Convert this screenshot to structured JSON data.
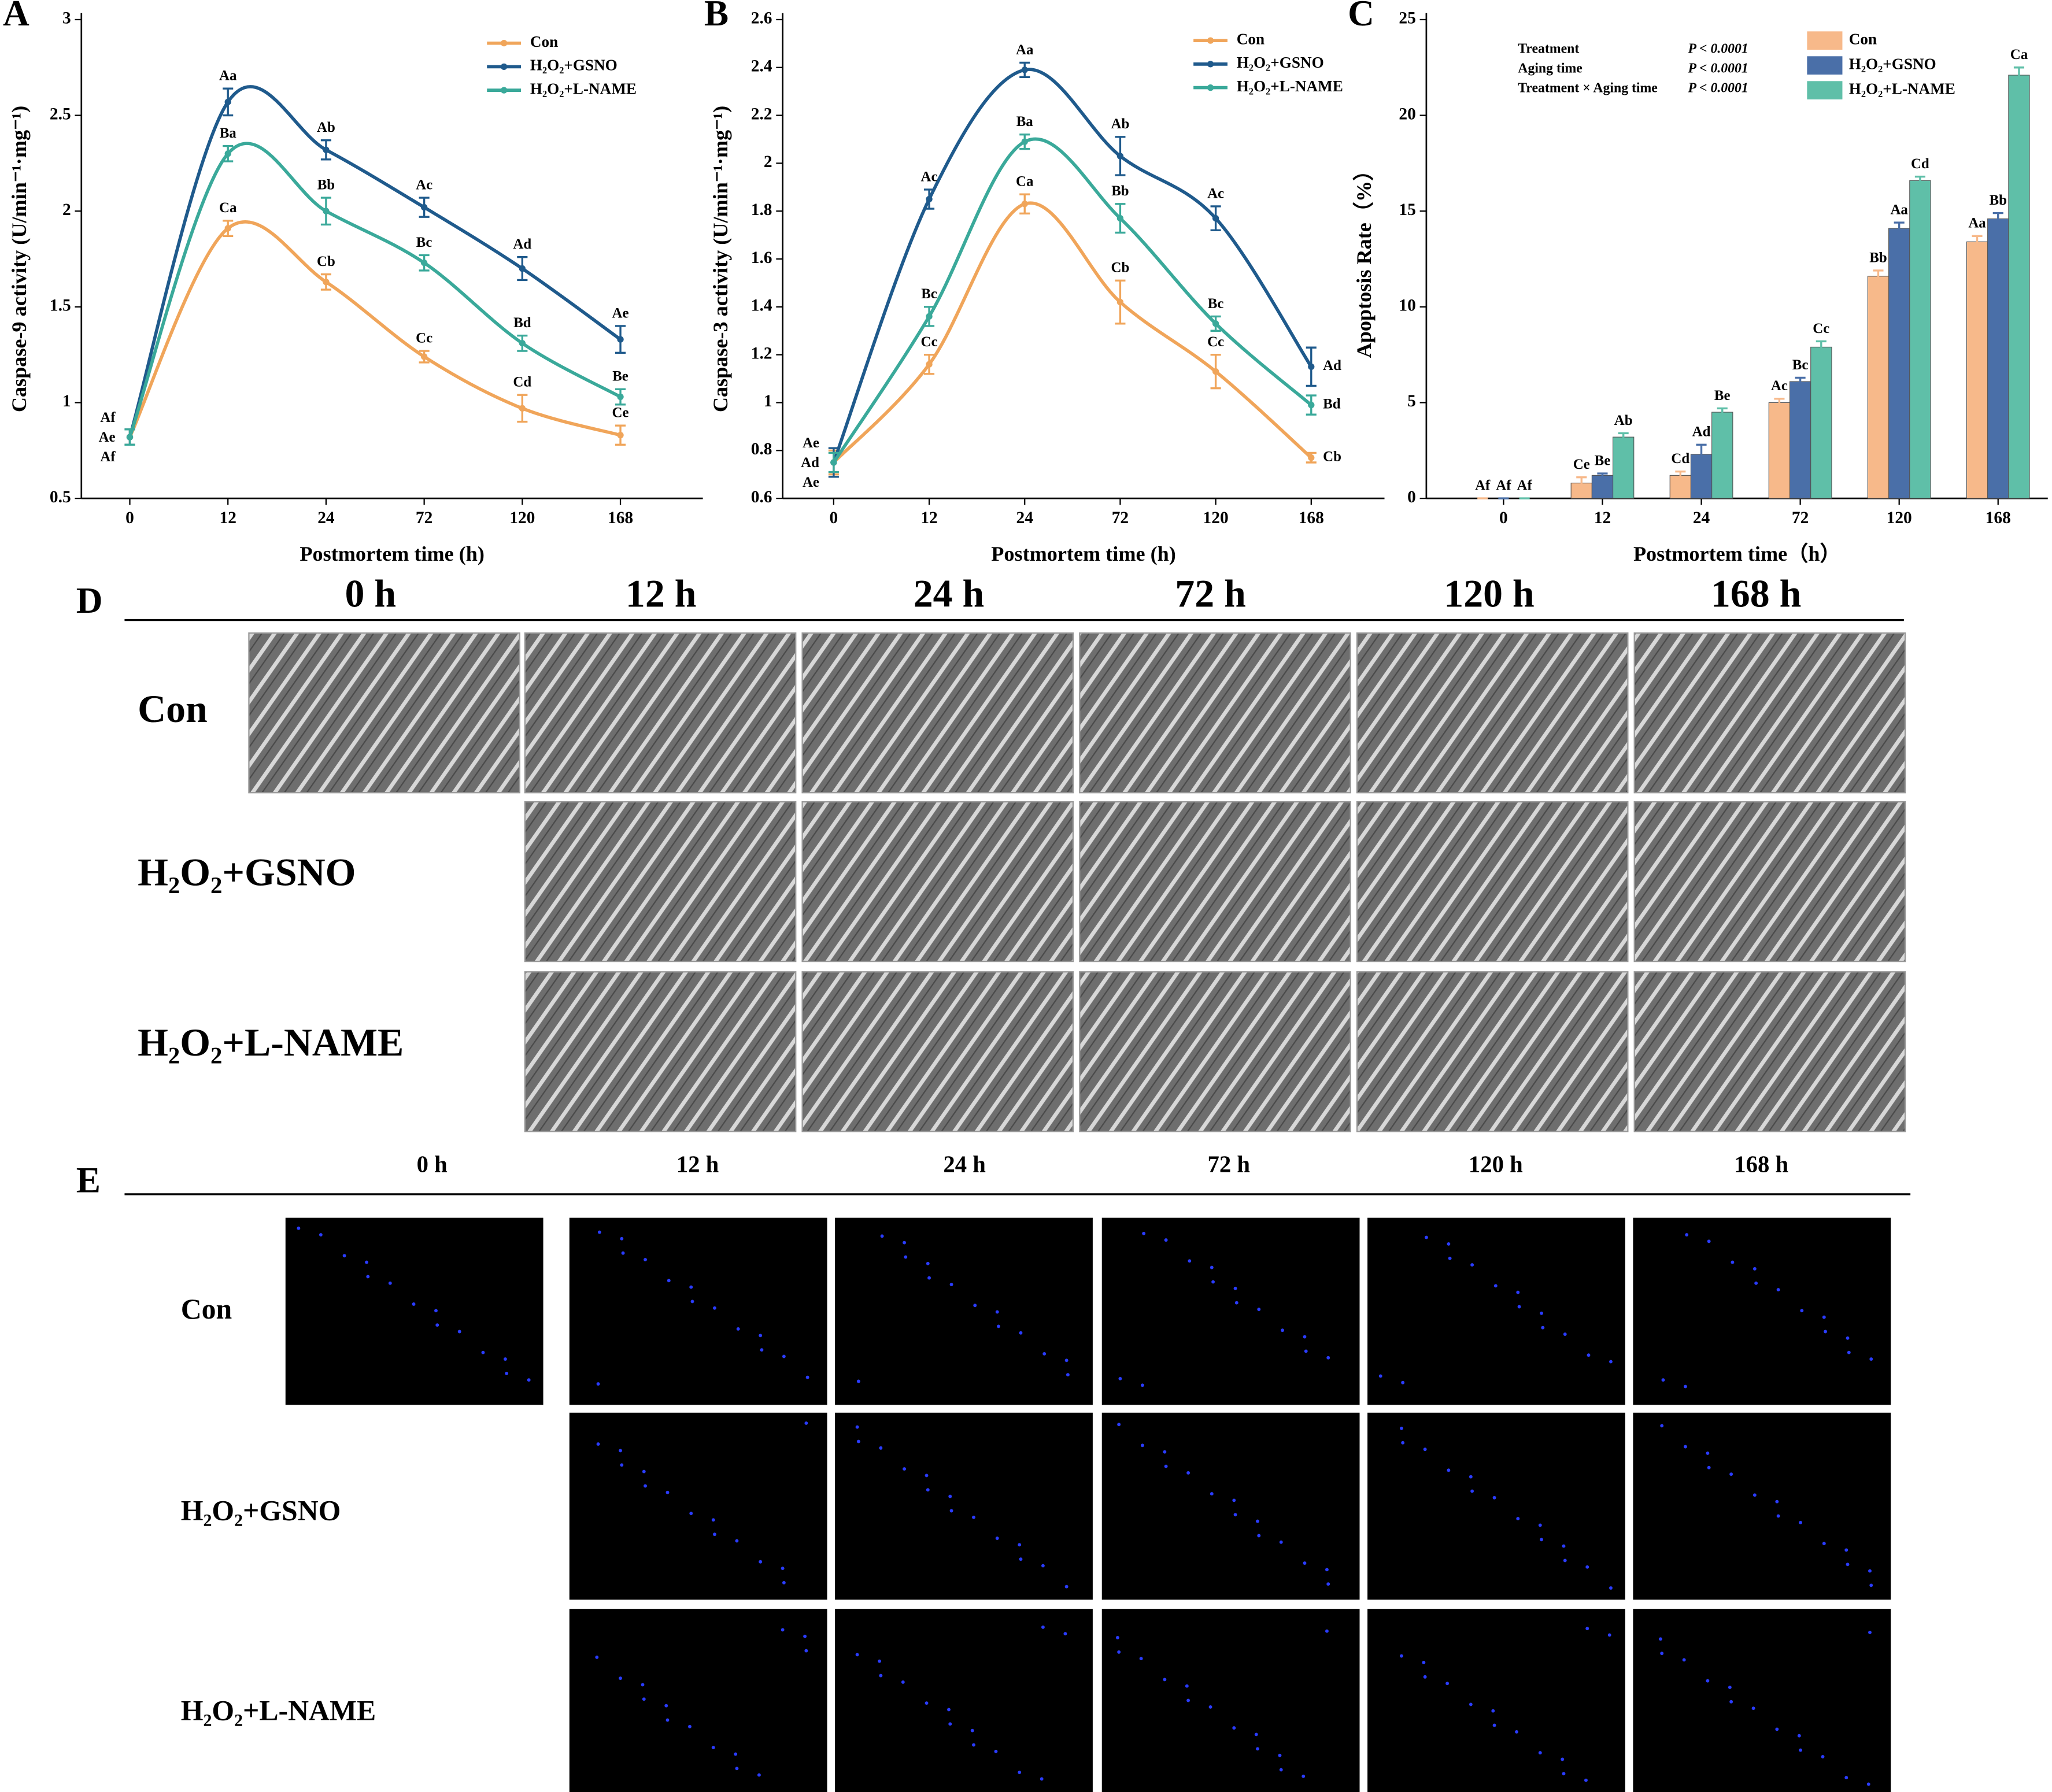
{
  "chart_data": [
    {
      "type": "line",
      "panel": "A",
      "xlabel": "Postmortem time (h)",
      "ylabel": "Caspase-9 activity (U/min⁻¹·mg⁻¹)",
      "categories": [
        "0",
        "12",
        "24",
        "72",
        "120",
        "168"
      ],
      "ylim": [
        0.5,
        3.0
      ],
      "yticks": [
        0.5,
        1.0,
        1.5,
        2.0,
        2.5,
        3.0
      ],
      "series": [
        {
          "name": "Con",
          "color": "#f0a55a",
          "values": [
            0.82,
            1.91,
            1.63,
            1.24,
            0.97,
            0.83
          ],
          "errors": [
            0.04,
            0.04,
            0.04,
            0.03,
            0.07,
            0.05
          ],
          "labels": [
            "Af",
            "Ca",
            "Cb",
            "Cc",
            "Cd",
            "Ce"
          ]
        },
        {
          "name": "H₂O₂+GSNO",
          "color": "#1f5a8c",
          "values": [
            0.82,
            2.57,
            2.32,
            2.02,
            1.7,
            1.33
          ],
          "errors": [
            0.04,
            0.07,
            0.05,
            0.05,
            0.06,
            0.07
          ],
          "labels": [
            "Ae",
            "Aa",
            "Ab",
            "Ac",
            "Ad",
            "Ae"
          ]
        },
        {
          "name": "H₂O₂+L-NAME",
          "color": "#3aa99a",
          "values": [
            0.82,
            2.3,
            2.0,
            1.73,
            1.31,
            1.03
          ],
          "errors": [
            0.04,
            0.04,
            0.07,
            0.04,
            0.04,
            0.04
          ],
          "labels": [
            "Af",
            "Ba",
            "Bb",
            "Bc",
            "Bd",
            "Be"
          ]
        }
      ]
    },
    {
      "type": "line",
      "panel": "B",
      "xlabel": "Postmortem time (h)",
      "ylabel": "Caspase-3 activity (U/min⁻¹·mg⁻¹)",
      "categories": [
        "0",
        "12",
        "24",
        "72",
        "120",
        "168"
      ],
      "ylim": [
        0.6,
        2.6
      ],
      "yticks": [
        0.6,
        0.8,
        1.0,
        1.2,
        1.4,
        1.6,
        1.8,
        2.0,
        2.2,
        2.4,
        2.6
      ],
      "series": [
        {
          "name": "Con",
          "color": "#f0a55a",
          "values": [
            0.75,
            1.16,
            1.83,
            1.42,
            1.13,
            0.77
          ],
          "errors": [
            0.05,
            0.04,
            0.04,
            0.09,
            0.07,
            0.02
          ],
          "labels": [
            "Ae",
            "Cc",
            "Ca",
            "Cb",
            "Cc",
            "Cb"
          ]
        },
        {
          "name": "H₂O₂+GSNO",
          "color": "#1f5a8c",
          "values": [
            0.75,
            1.85,
            2.39,
            2.03,
            1.77,
            1.15
          ],
          "errors": [
            0.06,
            0.04,
            0.03,
            0.08,
            0.05,
            0.08
          ],
          "labels": [
            "Ad",
            "Ac",
            "Aa",
            "Ab",
            "Ac",
            "Ad"
          ]
        },
        {
          "name": "H₂O₂+L-NAME",
          "color": "#3aa99a",
          "values": [
            0.75,
            1.36,
            2.09,
            1.77,
            1.33,
            0.99
          ],
          "errors": [
            0.04,
            0.04,
            0.03,
            0.06,
            0.03,
            0.04
          ],
          "labels": [
            "Ae",
            "Bc",
            "Ba",
            "Bb",
            "Bc",
            "Bd"
          ]
        }
      ]
    },
    {
      "type": "bar",
      "panel": "C",
      "xlabel": "Postmortem time（h）",
      "ylabel": "Apoptosis Rate（%）",
      "categories": [
        "0",
        "12",
        "24",
        "72",
        "120",
        "168"
      ],
      "ylim": [
        0,
        25
      ],
      "yticks": [
        0,
        5,
        10,
        15,
        20,
        25
      ],
      "stats": [
        {
          "label": "Treatment",
          "p": "P < 0.0001"
        },
        {
          "label": "Aging time",
          "p": "P < 0.0001"
        },
        {
          "label": "Treatment × Aging time",
          "p": "P < 0.0001"
        }
      ],
      "series": [
        {
          "name": "Con",
          "color": "#f7b98a",
          "values": [
            0,
            0.8,
            1.2,
            5.0,
            11.6,
            13.4
          ],
          "errors": [
            0,
            0.3,
            0.2,
            0.2,
            0.3,
            0.3
          ],
          "labels": [
            "Af",
            "Ce",
            "Cd",
            "Ac",
            "Bb",
            "Aa"
          ]
        },
        {
          "name": "H₂O₂+GSNO",
          "color": "#4a6fa8",
          "values": [
            0,
            1.2,
            2.3,
            6.1,
            14.1,
            14.6
          ],
          "errors": [
            0,
            0.1,
            0.5,
            0.2,
            0.3,
            0.3
          ],
          "labels": [
            "Af",
            "Be",
            "Ad",
            "Bc",
            "Aa",
            "Bb"
          ]
        },
        {
          "name": "H₂O₂+L-NAME",
          "color": "#5fbfa8",
          "values": [
            0,
            3.2,
            4.5,
            7.9,
            16.6,
            22.1
          ],
          "errors": [
            0,
            0.2,
            0.2,
            0.3,
            0.2,
            0.4
          ],
          "labels": [
            "Af",
            "Ab",
            "Be",
            "Cc",
            "Cd",
            "Ca"
          ]
        }
      ]
    }
  ],
  "panel_d": {
    "label": "D",
    "columns": [
      "0 h",
      "12 h",
      "24 h",
      "72 h",
      "120 h",
      "168 h"
    ],
    "rows": [
      "Con",
      "H₂O₂+GSNO",
      "H₂O₂+L-NAME"
    ]
  },
  "panel_e": {
    "label": "E",
    "columns": [
      "0 h",
      "12 h",
      "24 h",
      "72 h",
      "120 h",
      "168 h"
    ],
    "rows": [
      "Con",
      "H₂O₂+GSNO",
      "H₂O₂+L-NAME"
    ]
  }
}
